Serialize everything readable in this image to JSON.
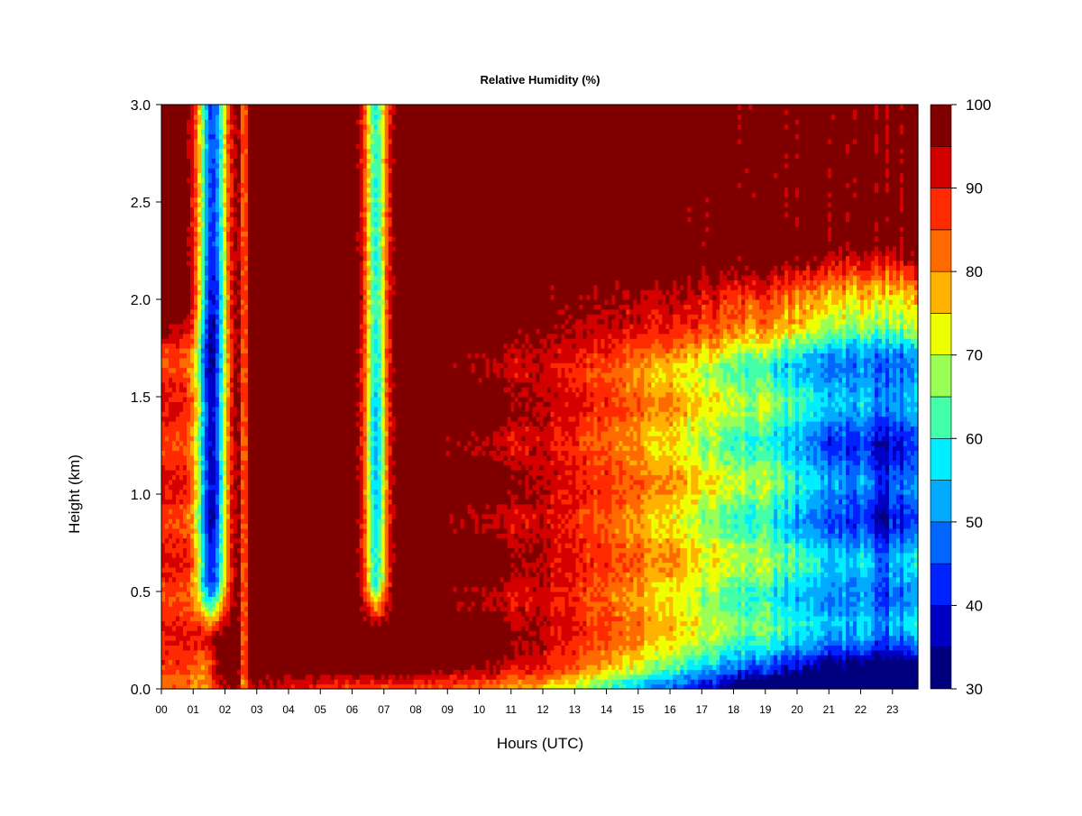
{
  "chart_data": {
    "type": "heatmap",
    "title": "Relative Humidity (%)",
    "xlabel": "Hours (UTC)",
    "ylabel": "Height (km)",
    "x_ticks": [
      "00",
      "01",
      "02",
      "03",
      "04",
      "05",
      "06",
      "07",
      "08",
      "09",
      "10",
      "11",
      "12",
      "13",
      "14",
      "15",
      "16",
      "17",
      "18",
      "19",
      "20",
      "21",
      "22",
      "23"
    ],
    "y_ticks": [
      "0.0",
      "0.5",
      "1.0",
      "1.5",
      "2.0",
      "2.5",
      "3.0"
    ],
    "xlim": [
      0,
      23.8
    ],
    "ylim": [
      0,
      3.0
    ],
    "colorbar": {
      "ticks": [
        "30",
        "40",
        "50",
        "60",
        "70",
        "80",
        "90",
        "100"
      ],
      "range": [
        30,
        100
      ],
      "levels": [
        {
          "from": 30,
          "to": 35,
          "color": "#00007f"
        },
        {
          "from": 35,
          "to": 40,
          "color": "#0000c4"
        },
        {
          "from": 40,
          "to": 45,
          "color": "#0022ff"
        },
        {
          "from": 45,
          "to": 50,
          "color": "#0066ff"
        },
        {
          "from": 50,
          "to": 55,
          "color": "#00aaff"
        },
        {
          "from": 55,
          "to": 60,
          "color": "#00eeff"
        },
        {
          "from": 60,
          "to": 65,
          "color": "#44ffaa"
        },
        {
          "from": 65,
          "to": 70,
          "color": "#99ff55"
        },
        {
          "from": 70,
          "to": 75,
          "color": "#eeff00"
        },
        {
          "from": 75,
          "to": 80,
          "color": "#ffb300"
        },
        {
          "from": 80,
          "to": 85,
          "color": "#ff6a00"
        },
        {
          "from": 85,
          "to": 90,
          "color": "#ff2a00"
        },
        {
          "from": 90,
          "to": 95,
          "color": "#d40000"
        },
        {
          "from": 95,
          "to": 100,
          "color": "#800000"
        }
      ]
    }
  }
}
